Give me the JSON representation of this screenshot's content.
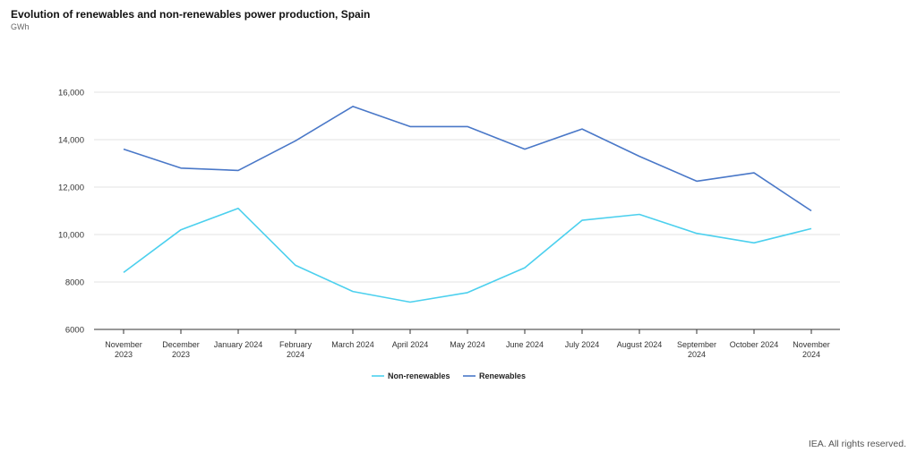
{
  "header": {
    "title": "Evolution of renewables and non-renewables power production, Spain",
    "unit": "GWh"
  },
  "footer": {
    "credit": "IEA. All rights reserved."
  },
  "colors": {
    "non_renewables": "#4cd0ee",
    "renewables": "#4a78c8",
    "grid": "#e3e3e3",
    "axis": "#333333"
  },
  "chart_data": {
    "type": "line",
    "title": "Evolution of renewables and non-renewables power production, Spain",
    "subtitle": "GWh",
    "xlabel": "",
    "ylabel": "",
    "ylim": [
      6000,
      16000
    ],
    "yticks": [
      6000,
      8000,
      10000,
      12000,
      14000,
      16000
    ],
    "ytick_labels": [
      "6000",
      "8000",
      "10,000",
      "12,000",
      "14,000",
      "16,000"
    ],
    "grid": true,
    "legend_position": "bottom",
    "categories": [
      "November 2023",
      "December 2023",
      "January 2024",
      "February 2024",
      "March 2024",
      "April 2024",
      "May 2024",
      "June 2024",
      "July 2024",
      "August 2024",
      "September 2024",
      "October 2024",
      "November 2024"
    ],
    "category_lines": [
      [
        "November",
        "2023"
      ],
      [
        "December",
        "2023"
      ],
      [
        "January 2024"
      ],
      [
        "February",
        "2024"
      ],
      [
        "March 2024"
      ],
      [
        "April 2024"
      ],
      [
        "May 2024"
      ],
      [
        "June 2024"
      ],
      [
        "July 2024"
      ],
      [
        "August 2024"
      ],
      [
        "September",
        "2024"
      ],
      [
        "October 2024"
      ],
      [
        "November",
        "2024"
      ]
    ],
    "series": [
      {
        "name": "Non-renewables",
        "color": "#4cd0ee",
        "values": [
          8400,
          10200,
          11100,
          8700,
          7600,
          7150,
          7550,
          8600,
          10600,
          10850,
          10050,
          9650,
          10250
        ]
      },
      {
        "name": "Renewables",
        "color": "#4a78c8",
        "values": [
          13600,
          12800,
          12700,
          13950,
          15400,
          14550,
          14550,
          13600,
          14450,
          13300,
          12250,
          12600,
          11000
        ]
      }
    ]
  }
}
